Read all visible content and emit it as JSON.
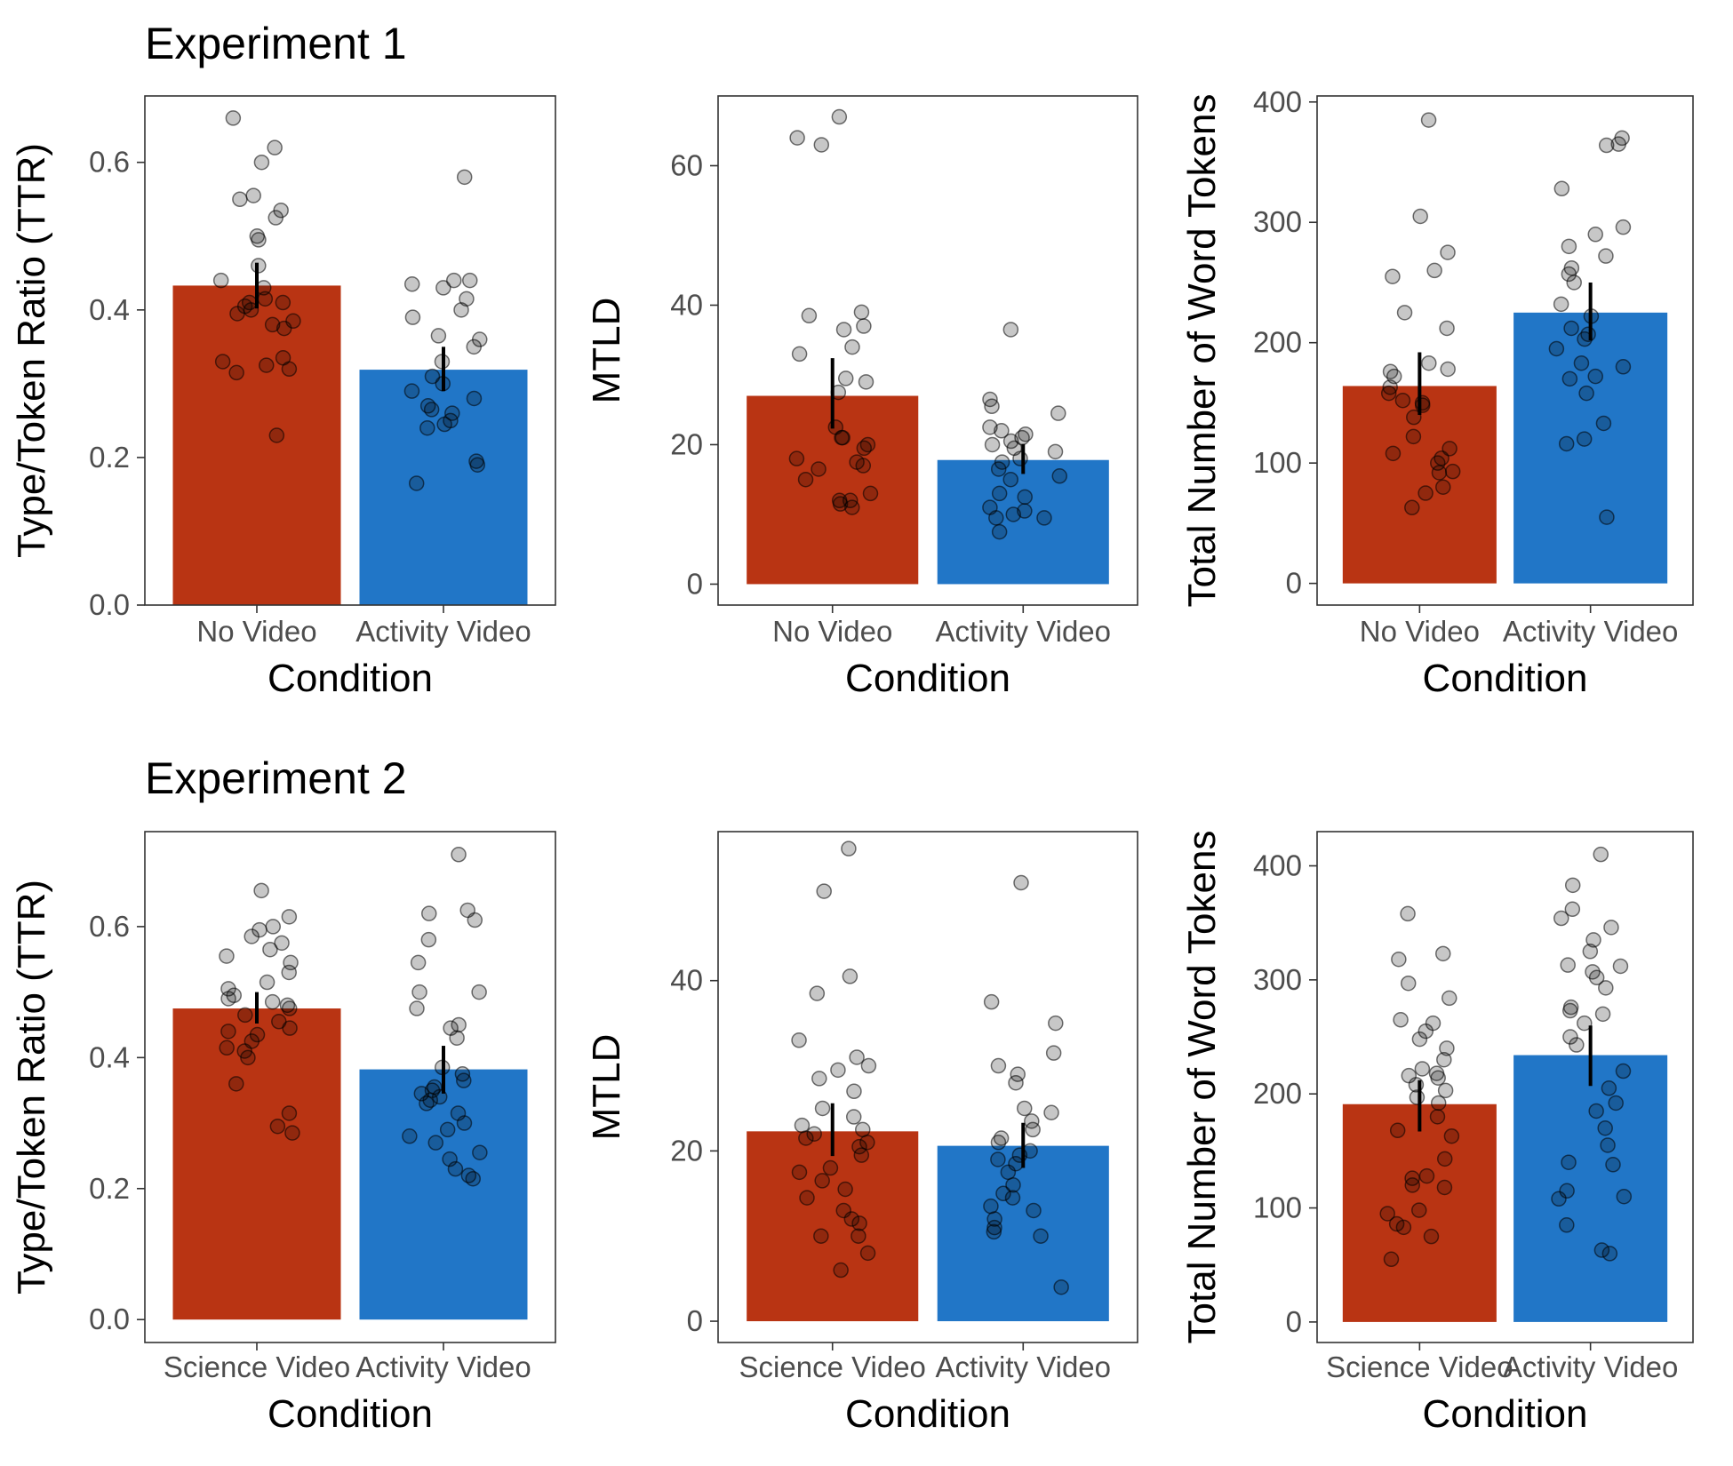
{
  "row_titles": [
    "Experiment 1",
    "Experiment 2"
  ],
  "colors": {
    "no_video": "#B93413",
    "science_video": "#B93413",
    "activity_video": "#2176C7"
  },
  "chart_data": [
    {
      "type": "bar",
      "row": 0,
      "col": 0,
      "categories": [
        "No Video",
        "Activity Video"
      ],
      "values": [
        0.433,
        0.319
      ],
      "error": [
        [
          0.402,
          0.464
        ],
        [
          0.29,
          0.35
        ]
      ],
      "points": [
        [
          0.66,
          0.62,
          0.6,
          0.555,
          0.55,
          0.535,
          0.525,
          0.5,
          0.495,
          0.46,
          0.44,
          0.43,
          0.415,
          0.41,
          0.41,
          0.405,
          0.4,
          0.395,
          0.385,
          0.38,
          0.375,
          0.335,
          0.33,
          0.325,
          0.32,
          0.315,
          0.23
        ],
        [
          0.58,
          0.44,
          0.44,
          0.435,
          0.43,
          0.415,
          0.4,
          0.39,
          0.365,
          0.36,
          0.35,
          0.33,
          0.31,
          0.3,
          0.29,
          0.28,
          0.27,
          0.265,
          0.26,
          0.25,
          0.245,
          0.24,
          0.195,
          0.19,
          0.165
        ]
      ],
      "xlabel": "Condition",
      "ylabel": "Type/Token Ratio (TTR)",
      "ylim": [
        0,
        0.69
      ],
      "yticks": [
        "0.0",
        "0.2",
        "0.4",
        "0.6"
      ],
      "ytick_values": [
        0,
        0.2,
        0.4,
        0.6
      ]
    },
    {
      "type": "bar",
      "row": 0,
      "col": 1,
      "categories": [
        "No Video",
        "Activity Video"
      ],
      "values": [
        27.0,
        17.8
      ],
      "error": [
        [
          22.3,
          32.4
        ],
        [
          15.8,
          20.1
        ]
      ],
      "points": [
        [
          67,
          64,
          63,
          39,
          38.5,
          37,
          36.5,
          34,
          33,
          29.5,
          29,
          27.5,
          22.5,
          21,
          21,
          20,
          19.5,
          18,
          17.5,
          17,
          16.5,
          15,
          13,
          12,
          12,
          11.5,
          11
        ],
        [
          36.5,
          26.5,
          25.5,
          24.5,
          22.5,
          22,
          21.5,
          21,
          20.5,
          20,
          19.5,
          19,
          18,
          17.5,
          16.5,
          15.5,
          15,
          13,
          12.5,
          11,
          10.5,
          10,
          9.5,
          9.5,
          7.5
        ]
      ],
      "xlabel": "Condition",
      "ylabel": "MTLD",
      "ylim": [
        -3,
        70
      ],
      "yticks": [
        "0",
        "20",
        "40",
        "60"
      ],
      "ytick_values": [
        0,
        20,
        40,
        60
      ]
    },
    {
      "type": "bar",
      "row": 0,
      "col": 2,
      "categories": [
        "No Video",
        "Activity Video"
      ],
      "values": [
        164,
        225
      ],
      "error": [
        [
          140,
          192
        ],
        [
          202,
          250
        ]
      ],
      "points": [
        [
          385,
          305,
          275,
          260,
          255,
          225,
          212,
          183,
          178,
          176,
          172,
          163,
          158,
          152,
          150,
          148,
          138,
          122,
          112,
          108,
          104,
          100,
          93,
          92,
          80,
          75,
          63
        ],
        [
          370,
          365,
          364,
          328,
          296,
          290,
          280,
          272,
          262,
          257,
          250,
          232,
          222,
          212,
          207,
          203,
          195,
          183,
          180,
          172,
          170,
          158,
          133,
          120,
          116,
          55
        ]
      ],
      "xlabel": "Condition",
      "ylabel": "Total Number of Word Tokens",
      "ylim": [
        -18,
        405
      ],
      "yticks": [
        "0",
        "100",
        "200",
        "300",
        "400"
      ],
      "ytick_values": [
        0,
        100,
        200,
        300,
        400
      ]
    },
    {
      "type": "bar",
      "row": 1,
      "col": 0,
      "categories": [
        "Science Video",
        "Activity Video"
      ],
      "values": [
        0.475,
        0.382
      ],
      "error": [
        [
          0.452,
          0.5
        ],
        [
          0.345,
          0.418
        ]
      ],
      "points": [
        [
          0.655,
          0.615,
          0.6,
          0.595,
          0.585,
          0.575,
          0.565,
          0.555,
          0.545,
          0.53,
          0.515,
          0.505,
          0.495,
          0.49,
          0.485,
          0.48,
          0.475,
          0.465,
          0.455,
          0.445,
          0.44,
          0.435,
          0.425,
          0.415,
          0.41,
          0.4,
          0.36,
          0.315,
          0.295,
          0.285
        ],
        [
          0.71,
          0.625,
          0.62,
          0.61,
          0.58,
          0.545,
          0.5,
          0.5,
          0.475,
          0.45,
          0.445,
          0.43,
          0.385,
          0.375,
          0.365,
          0.355,
          0.35,
          0.345,
          0.34,
          0.335,
          0.33,
          0.315,
          0.3,
          0.29,
          0.28,
          0.27,
          0.255,
          0.245,
          0.23,
          0.22,
          0.215
        ]
      ],
      "xlabel": "Condition",
      "ylabel": "Type/Token Ratio (TTR)",
      "ylim": [
        -0.035,
        0.745
      ],
      "yticks": [
        "0.0",
        "0.2",
        "0.4",
        "0.6"
      ],
      "ytick_values": [
        0,
        0.2,
        0.4,
        0.6
      ]
    },
    {
      "type": "bar",
      "row": 1,
      "col": 1,
      "categories": [
        "Science Video",
        "Activity Video"
      ],
      "values": [
        22.3,
        20.6
      ],
      "error": [
        [
          19.4,
          25.6
        ],
        [
          18.0,
          23.3
        ]
      ],
      "points": [
        [
          55.5,
          50.5,
          40.5,
          38.5,
          33,
          31,
          30,
          29.5,
          28.5,
          27,
          25,
          24,
          23,
          22.5,
          22,
          21.5,
          21,
          20.5,
          19.5,
          18,
          17.5,
          16.5,
          15.5,
          14.5,
          13,
          12,
          11.5,
          10,
          10,
          8,
          6
        ],
        [
          51.5,
          37.5,
          35,
          31.5,
          30,
          29,
          28,
          25,
          24.5,
          23.5,
          22.5,
          21.5,
          21,
          20,
          19.5,
          19,
          18.5,
          17.5,
          16,
          15,
          14.5,
          13.5,
          13,
          12,
          11,
          10.5,
          10,
          4
        ]
      ],
      "xlabel": "Condition",
      "ylabel": "MTLD",
      "ylim": [
        -2.5,
        57.5
      ],
      "yticks": [
        "0",
        "20",
        "40"
      ],
      "ytick_values": [
        0,
        20,
        40
      ]
    },
    {
      "type": "bar",
      "row": 1,
      "col": 2,
      "categories": [
        "Science Video",
        "Activity Video"
      ],
      "values": [
        191,
        234
      ],
      "error": [
        [
          167,
          212
        ],
        [
          207,
          260
        ]
      ],
      "points": [
        [
          358,
          323,
          318,
          297,
          284,
          265,
          262,
          255,
          248,
          240,
          230,
          222,
          218,
          216,
          214,
          208,
          203,
          197,
          192,
          180,
          168,
          163,
          143,
          128,
          126,
          120,
          118,
          98,
          95,
          86,
          83,
          75,
          55
        ],
        [
          410,
          383,
          362,
          354,
          346,
          335,
          325,
          313,
          312,
          307,
          302,
          293,
          276,
          273,
          270,
          262,
          250,
          243,
          220,
          205,
          192,
          185,
          170,
          155,
          140,
          138,
          115,
          110,
          108,
          85,
          63,
          60
        ]
      ],
      "xlabel": "Condition",
      "ylabel": "Total Number of Word Tokens",
      "ylim": [
        -18,
        430
      ],
      "yticks": [
        "0",
        "100",
        "200",
        "300",
        "400"
      ],
      "ytick_values": [
        0,
        100,
        200,
        300,
        400
      ]
    }
  ]
}
